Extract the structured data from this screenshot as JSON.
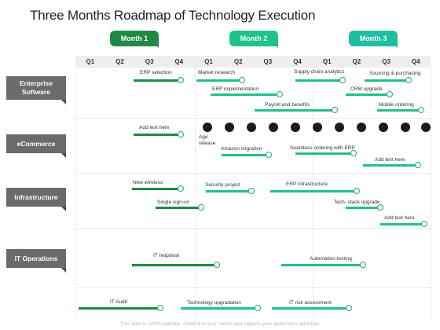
{
  "title": "Three Months Roadmap of Technology Execution",
  "months": [
    "Month 1",
    "Month 2",
    "Month 3"
  ],
  "colors": {
    "month1": "#1e8a45",
    "month2": "#1ec28a",
    "month3": "#1dbfa0",
    "bar_dark": "#1e8a45",
    "bar_light": "#22c08a",
    "milestone": "#1b1b1b",
    "category": "#6b6b6b"
  },
  "quarters": [
    "Q1",
    "Q2",
    "Q3",
    "Q4",
    "Q1",
    "Q2",
    "Q3",
    "Q4",
    "Q1",
    "Q2",
    "Q3",
    "Q4"
  ],
  "categories": [
    "Enterprise Software",
    "eCommerce",
    "Infrastructure",
    "IT Operations"
  ],
  "tasks": {
    "erp_selection": "ERP selection",
    "market_research": "Market research",
    "supply_chain": "Supply chain analytics",
    "sourcing": "Sourcing & purchasing",
    "erp_impl": "ERP implementation",
    "crm": "CRM upgrade",
    "payroll": "Payroll and benefits",
    "mobile": "Mobile ordering",
    "add_text_1": "Add text here",
    "age_release": "Age release",
    "amazon": "Amazon migration",
    "seamless": "Seamless ordering with ERP",
    "add_text_2": "Add text here",
    "new_wireless": "New wireless",
    "security": "Security project",
    "erp_infra": "ERP infrastructure",
    "sso": "Single sign-on",
    "tech_stack": "Tech- stack upgrade",
    "add_text_3": "Add text here",
    "helpdesk": "IT helpdesk",
    "automation": "Automation testing",
    "audit": "IT Audit",
    "tech_upgrade": "Technology upgradation",
    "risk": "IT risk assessment"
  },
  "footer": "This slide is 100% editable. Adapt it to your needs and capture your audience's attention."
}
